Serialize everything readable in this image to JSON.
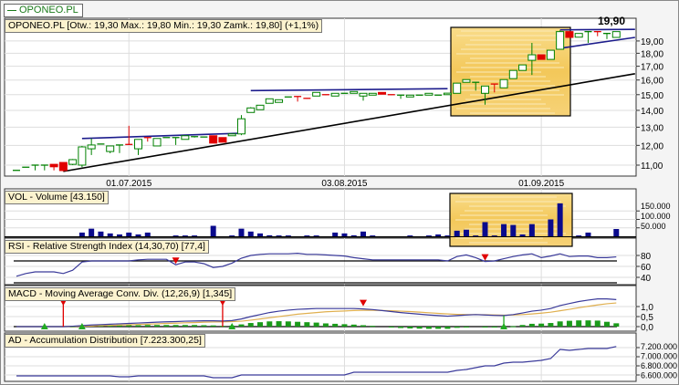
{
  "legend": {
    "label": "OPONEO.PL",
    "color": "#1a7a1a"
  },
  "colors": {
    "up": "#008000",
    "down": "#e00000",
    "volume": "#0a0a8c",
    "macd": "#3a3a9a",
    "signal": "#e0b050",
    "histogram": "#1a9a1a",
    "trend_blue": "#1c1c8c",
    "trend_black": "#000000",
    "highlight": "#f3c85a"
  },
  "chart_data": [
    {
      "type": "candlestick",
      "title": "OPONEO.PL [Otw.: 19,30  Max.: 19,80  Min.: 19,30  Zamk.: 19,80] (+1,1%)",
      "max_label": "19,90",
      "y_scale": "log",
      "ylim": [
        10.6,
        20.3
      ],
      "grid": true,
      "x_ticks": [
        {
          "date": "2015-07-01",
          "label": "01.07.2015"
        },
        {
          "date": "2015-08-03",
          "label": "03.08.2015"
        },
        {
          "date": "2015-09-01",
          "label": "01.09.2015"
        }
      ],
      "y_ticks": [
        {
          "v": 19,
          "label": "19,00"
        },
        {
          "v": 18,
          "label": "18,00"
        },
        {
          "v": 17,
          "label": "17,00"
        },
        {
          "v": 16,
          "label": "16,00"
        },
        {
          "v": 15,
          "label": "15,00"
        },
        {
          "v": 14,
          "label": "14,00"
        },
        {
          "v": 13,
          "label": "13,00"
        },
        {
          "v": 12,
          "label": "12,00"
        },
        {
          "v": 11,
          "label": "11,00"
        }
      ],
      "dates": [
        "2015-06-15",
        "2015-06-16",
        "2015-06-17",
        "2015-06-18",
        "2015-06-19",
        "2015-06-22",
        "2015-06-23",
        "2015-06-24",
        "2015-06-25",
        "2015-06-26",
        "2015-06-29",
        "2015-06-30",
        "2015-07-01",
        "2015-07-02",
        "2015-07-03",
        "2015-07-06",
        "2015-07-07",
        "2015-07-08",
        "2015-07-09",
        "2015-07-10",
        "2015-07-13",
        "2015-07-14",
        "2015-07-15",
        "2015-07-16",
        "2015-07-17",
        "2015-07-20",
        "2015-07-21",
        "2015-07-22",
        "2015-07-23",
        "2015-07-24",
        "2015-07-27",
        "2015-07-28",
        "2015-07-29",
        "2015-07-30",
        "2015-07-31",
        "2015-08-03",
        "2015-08-04",
        "2015-08-05",
        "2015-08-06",
        "2015-08-07",
        "2015-08-10",
        "2015-08-11",
        "2015-08-12",
        "2015-08-13",
        "2015-08-14",
        "2015-08-17",
        "2015-08-18",
        "2015-08-19",
        "2015-08-20",
        "2015-08-21",
        "2015-08-24",
        "2015-08-25",
        "2015-08-26",
        "2015-08-27",
        "2015-08-28",
        "2015-08-31",
        "2015-09-01",
        "2015-09-02",
        "2015-09-03",
        "2015-09-04",
        "2015-09-07",
        "2015-09-08",
        "2015-09-09",
        "2015-09-10",
        "2015-09-11"
      ],
      "ohlc": [
        [
          10.75,
          10.75,
          10.75,
          10.75
        ],
        [
          10.9,
          10.9,
          10.9,
          10.9
        ],
        [
          11.0,
          11.0,
          10.75,
          11.0
        ],
        [
          11.0,
          11.0,
          10.75,
          11.0
        ],
        [
          11.04,
          11.04,
          10.75,
          10.92
        ],
        [
          11.13,
          11.13,
          10.7,
          10.74
        ],
        [
          11.04,
          11.3,
          11.0,
          11.27
        ],
        [
          11.0,
          11.97,
          10.9,
          11.92
        ],
        [
          11.82,
          12.37,
          11.5,
          12.02
        ],
        [
          12.07,
          12.07,
          12.07,
          12.07
        ],
        [
          11.68,
          11.97,
          11.59,
          11.97
        ],
        [
          12.02,
          12.02,
          11.6,
          12.02
        ],
        [
          12.05,
          13.08,
          12.02,
          12.02
        ],
        [
          11.82,
          12.32,
          11.5,
          12.32
        ],
        [
          12.42,
          12.42,
          12.2,
          12.37
        ],
        [
          11.97,
          12.37,
          11.97,
          12.37
        ],
        [
          12.42,
          12.42,
          12.42,
          12.42
        ],
        [
          12.42,
          12.42,
          12.02,
          12.42
        ],
        [
          12.32,
          12.52,
          12.32,
          12.52
        ],
        [
          12.42,
          12.47,
          12.42,
          12.47
        ],
        [
          12.45,
          12.45,
          12.45,
          12.45
        ],
        [
          12.52,
          12.52,
          12.12,
          12.12
        ],
        [
          12.42,
          12.42,
          12.17,
          12.17
        ],
        [
          12.52,
          12.62,
          12.52,
          12.62
        ],
        [
          12.62,
          13.71,
          12.55,
          13.49
        ],
        [
          13.87,
          14.2,
          13.87,
          14.15
        ],
        [
          14.04,
          14.32,
          14.04,
          14.32
        ],
        [
          14.44,
          14.73,
          14.44,
          14.73
        ],
        [
          14.5,
          14.67,
          14.5,
          14.67
        ],
        [
          14.85,
          14.85,
          14.85,
          14.85
        ],
        [
          14.88,
          14.88,
          14.55,
          14.85
        ],
        [
          14.76,
          14.76,
          14.73,
          14.73
        ],
        [
          14.91,
          15.15,
          14.91,
          15.15
        ],
        [
          15.0,
          15.0,
          14.97,
          14.97
        ],
        [
          14.91,
          15.09,
          14.91,
          15.09
        ],
        [
          15.09,
          15.09,
          15.09,
          15.09
        ],
        [
          15.09,
          15.21,
          15.09,
          15.21
        ],
        [
          14.91,
          15.09,
          14.61,
          15.09
        ],
        [
          14.97,
          15.09,
          14.97,
          15.09
        ],
        [
          15.15,
          15.15,
          15.03,
          15.03
        ],
        [
          15.0,
          15.0,
          14.97,
          14.97
        ],
        [
          14.97,
          14.97,
          14.73,
          14.97
        ],
        [
          14.85,
          14.97,
          14.85,
          14.97
        ],
        [
          14.97,
          14.97,
          14.97,
          14.97
        ],
        [
          14.97,
          15.09,
          14.97,
          15.09
        ],
        [
          14.97,
          14.97,
          14.97,
          14.97
        ],
        [
          15.0,
          15.1,
          15.0,
          15.1
        ],
        [
          15.09,
          15.8,
          15.09,
          15.78
        ],
        [
          15.84,
          16.03,
          15.84,
          16.03
        ],
        [
          15.84,
          15.84,
          15.27,
          15.84
        ],
        [
          15.09,
          15.58,
          14.35,
          15.58
        ],
        [
          15.72,
          15.72,
          15.15,
          15.65
        ],
        [
          15.46,
          16.03,
          15.46,
          16.03
        ],
        [
          16.1,
          16.69,
          16.1,
          16.69
        ],
        [
          16.69,
          17.1,
          16.69,
          17.1
        ],
        [
          17.45,
          18.84,
          16.36,
          17.88
        ],
        [
          17.88,
          17.88,
          17.52,
          17.52
        ],
        [
          17.52,
          18.24,
          17.52,
          18.24
        ],
        [
          18.32,
          19.9,
          18.32,
          19.8
        ],
        [
          19.8,
          19.8,
          19.3,
          19.3
        ],
        [
          19.32,
          19.64,
          19.32,
          19.64
        ],
        [
          19.8,
          19.8,
          18.84,
          19.8
        ],
        [
          19.8,
          19.8,
          19.4,
          19.75
        ],
        [
          19.64,
          19.64,
          19.16,
          19.64
        ],
        [
          19.3,
          19.8,
          19.3,
          19.8
        ]
      ],
      "trendlines": [
        {
          "color": "black",
          "from": [
            "2015-06-22",
            10.7
          ],
          "to": [
            "2015-09-15",
            16.45
          ]
        },
        {
          "color": "blue",
          "from": [
            "2015-06-24",
            12.37
          ],
          "to": [
            "2015-07-17",
            12.66
          ]
        },
        {
          "color": "blue",
          "from": [
            "2015-07-20",
            15.27
          ],
          "to": [
            "2015-08-18",
            15.4
          ]
        },
        {
          "color": "blue",
          "from": [
            "2015-09-03",
            19.95
          ],
          "to": [
            "2015-09-15",
            20.0
          ]
        },
        {
          "color": "blue",
          "from": [
            "2015-09-03",
            18.4
          ],
          "to": [
            "2015-09-15",
            19.3
          ]
        }
      ]
    },
    {
      "type": "bar",
      "title": "VOL - Volume [43.150]",
      "y_ticks": [
        {
          "v": 150000,
          "label": "150.000"
        },
        {
          "v": 100000,
          "label": "100.000"
        },
        {
          "v": 50000,
          "label": "50.000"
        }
      ],
      "values": [
        0,
        0,
        0,
        0,
        0,
        0,
        0,
        22000,
        45000,
        28000,
        17000,
        11000,
        22000,
        11000,
        22000,
        0,
        0,
        5000,
        5000,
        5000,
        0,
        62000,
        0,
        5000,
        45000,
        28000,
        17000,
        6000,
        5000,
        5000,
        0,
        5000,
        5000,
        0,
        22000,
        17000,
        6000,
        28000,
        5000,
        0,
        0,
        0,
        5000,
        0,
        5000,
        11000,
        5000,
        33000,
        39000,
        5000,
        84000,
        5000,
        72000,
        67000,
        11000,
        72000,
        0,
        100000,
        195000,
        0,
        5000,
        22000,
        0,
        0,
        43150
      ]
    },
    {
      "type": "line",
      "title": "RSI - Relative Strength Index (14,30,70) [77,4]",
      "levels": [
        70,
        30
      ],
      "y_ticks": [
        {
          "v": 80,
          "label": "80"
        },
        {
          "v": 60,
          "label": "60"
        },
        {
          "v": 40,
          "label": "40"
        }
      ],
      "values": [
        42,
        47,
        50,
        50,
        50,
        47,
        53,
        68,
        70,
        70,
        70,
        70,
        70,
        72,
        73,
        73,
        73,
        63,
        68,
        68,
        65,
        58,
        60,
        66,
        75,
        80,
        82,
        83,
        83,
        83,
        84,
        82,
        82,
        81,
        80,
        79,
        76,
        74,
        72,
        72,
        72,
        72,
        72,
        72,
        72,
        72,
        70,
        78,
        81,
        76,
        69,
        70,
        74,
        78,
        81,
        83,
        76,
        79,
        83,
        78,
        79,
        79,
        76,
        76,
        77.4
      ],
      "sell_signals": [
        17,
        50
      ]
    },
    {
      "type": "line",
      "title": "MACD - Moving Average Conv. Div. (12,26,9) [1,345]",
      "y_ticks": [
        {
          "v": 1.0,
          "label": "1,0"
        },
        {
          "v": 0.5,
          "label": "0,5"
        },
        {
          "v": 0.0,
          "label": "0,0"
        }
      ],
      "macd": [
        0,
        0,
        0,
        0,
        0,
        0,
        0.02,
        0.05,
        0.08,
        0.1,
        0.12,
        0.14,
        0.16,
        0.18,
        0.2,
        0.22,
        0.24,
        0.25,
        0.27,
        0.28,
        0.29,
        0.29,
        0.28,
        0.3,
        0.38,
        0.5,
        0.6,
        0.7,
        0.77,
        0.82,
        0.86,
        0.88,
        0.9,
        0.9,
        0.9,
        0.9,
        0.9,
        0.88,
        0.85,
        0.8,
        0.75,
        0.7,
        0.66,
        0.62,
        0.58,
        0.55,
        0.52,
        0.55,
        0.58,
        0.6,
        0.58,
        0.56,
        0.55,
        0.6,
        0.68,
        0.77,
        0.82,
        0.9,
        1.05,
        1.15,
        1.25,
        1.32,
        1.38,
        1.38,
        1.345
      ],
      "signal": [
        0,
        0,
        0,
        0,
        0,
        0,
        0.01,
        0.02,
        0.03,
        0.05,
        0.06,
        0.08,
        0.09,
        0.11,
        0.12,
        0.14,
        0.16,
        0.17,
        0.19,
        0.2,
        0.22,
        0.23,
        0.24,
        0.25,
        0.27,
        0.32,
        0.38,
        0.44,
        0.5,
        0.56,
        0.62,
        0.66,
        0.7,
        0.74,
        0.76,
        0.78,
        0.8,
        0.81,
        0.81,
        0.8,
        0.79,
        0.77,
        0.75,
        0.72,
        0.69,
        0.66,
        0.63,
        0.61,
        0.6,
        0.6,
        0.59,
        0.58,
        0.57,
        0.58,
        0.6,
        0.63,
        0.67,
        0.72,
        0.79,
        0.86,
        0.94,
        1.01,
        1.08,
        1.14,
        1.18
      ],
      "sell_signals": [
        {
          "i": 5,
          "stem": true
        },
        {
          "i": 22,
          "stem": true
        },
        {
          "i": 37,
          "stem": false
        }
      ],
      "buy_signals": [
        {
          "i": 3,
          "stem": false
        },
        {
          "i": 7,
          "stem": false
        },
        {
          "i": 23,
          "stem": false
        },
        {
          "i": 52,
          "stem": true
        }
      ]
    },
    {
      "type": "line",
      "title": "AD - Accumulation Distribution [7.223.300,25]",
      "y_ticks": [
        {
          "v": 7200000,
          "label": "7.200.000"
        },
        {
          "v": 7000000,
          "label": "7.000.000"
        },
        {
          "v": 6800000,
          "label": "6.800.000"
        },
        {
          "v": 6600000,
          "label": "6.600.000"
        }
      ],
      "values": [
        6580000,
        6580000,
        6580000,
        6580000,
        6580000,
        6580000,
        6580000,
        6580000,
        6580000,
        6580000,
        6580000,
        6560000,
        6560000,
        6580000,
        6580000,
        6580000,
        6580000,
        6580000,
        6580000,
        6580000,
        6580000,
        6540000,
        6540000,
        6540000,
        6600000,
        6600000,
        6600000,
        6600000,
        6600000,
        6600000,
        6600000,
        6600000,
        6600000,
        6600000,
        6600000,
        6600000,
        6660000,
        6660000,
        6660000,
        6660000,
        6660000,
        6660000,
        6660000,
        6660000,
        6660000,
        6660000,
        6660000,
        6700000,
        6720000,
        6760000,
        6800000,
        6800000,
        6860000,
        6880000,
        6880000,
        6900000,
        6920000,
        6960000,
        7160000,
        7140000,
        7160000,
        7180000,
        7180000,
        7180000,
        7223300.25
      ]
    }
  ]
}
